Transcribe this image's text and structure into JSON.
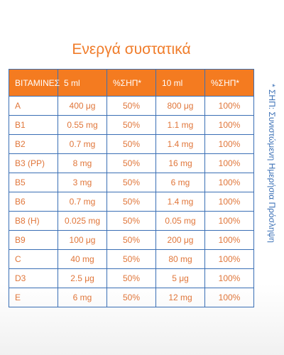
{
  "title": "Ενεργά συστατικά",
  "table": {
    "header": [
      "ΒΙΤΑΜΙΝΕΣ",
      "5 ml",
      "%ΣΗΠ*",
      "10 ml",
      "%ΣΗΠ*"
    ],
    "rows": [
      [
        "A",
        "400 μg",
        "50%",
        "800 μg",
        "100%"
      ],
      [
        "B1",
        "0.55 mg",
        "50%",
        "1.1 mg",
        "100%"
      ],
      [
        "B2",
        "0.7 mg",
        "50%",
        "1.4 mg",
        "100%"
      ],
      [
        "B3 (PP)",
        "8 mg",
        "50%",
        "16 mg",
        "100%"
      ],
      [
        "B5",
        "3 mg",
        "50%",
        "6 mg",
        "100%"
      ],
      [
        "B6",
        "0.7 mg",
        "50%",
        "1.4 mg",
        "100%"
      ],
      [
        "B8 (H)",
        "0.025 mg",
        "50%",
        "0.05 mg",
        "100%"
      ],
      [
        "B9",
        "100 μg",
        "50%",
        "200 μg",
        "100%"
      ],
      [
        "C",
        "40 mg",
        "50%",
        "80 mg",
        "100%"
      ],
      [
        "D3",
        "2.5 μg",
        "50%",
        "5 μg",
        "100%"
      ],
      [
        "E",
        "6 mg",
        "50%",
        "12 mg",
        "100%"
      ]
    ]
  },
  "note": "* ΣΗΠ: Συνιστώμενη Ημερήσια Πρόσληψη"
}
